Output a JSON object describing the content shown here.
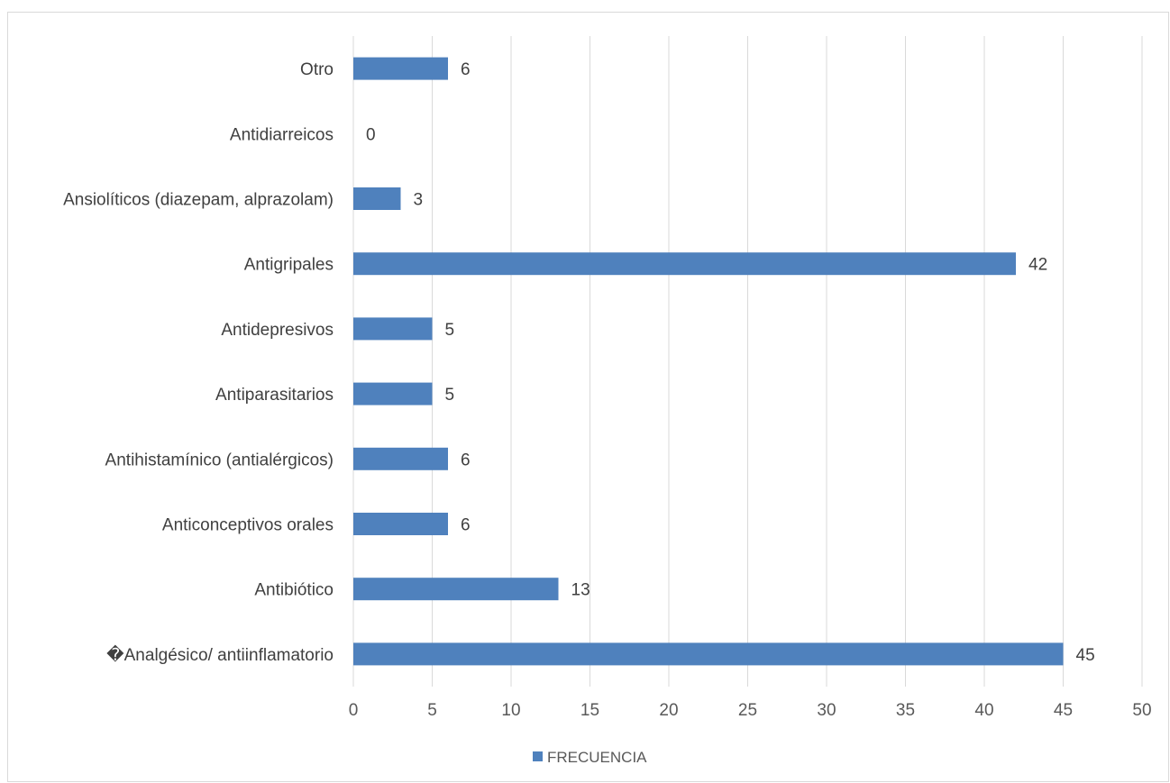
{
  "chart_data": {
    "type": "bar",
    "orientation": "horizontal",
    "categories": [
      "Otro",
      "Antidiarreicos",
      "Ansiolíticos (diazepam, alprazolam)",
      "Antigripales",
      "Antidepresivos",
      "Antiparasitarios",
      "Antihistamínico (antialérgicos)",
      "Anticonceptivos orales",
      "Antibiótico",
      "�Analgésico/ antiinflamatorio"
    ],
    "series": [
      {
        "name": "FRECUENCIA",
        "values": [
          6,
          0,
          3,
          42,
          5,
          5,
          6,
          6,
          13,
          45
        ]
      }
    ],
    "xlim": [
      0,
      50
    ],
    "xticks": [
      0,
      5,
      10,
      15,
      20,
      25,
      30,
      35,
      40,
      45,
      50
    ],
    "tick_labels": [
      "0",
      "5",
      "10",
      "15",
      "20",
      "25",
      "30",
      "35",
      "40",
      "45",
      "50"
    ],
    "grid": true,
    "legend": "bottom-center",
    "colors": {
      "bar": "#4f81bd",
      "grid": "#d9d9d9",
      "frame": "#d9d9d9"
    }
  }
}
